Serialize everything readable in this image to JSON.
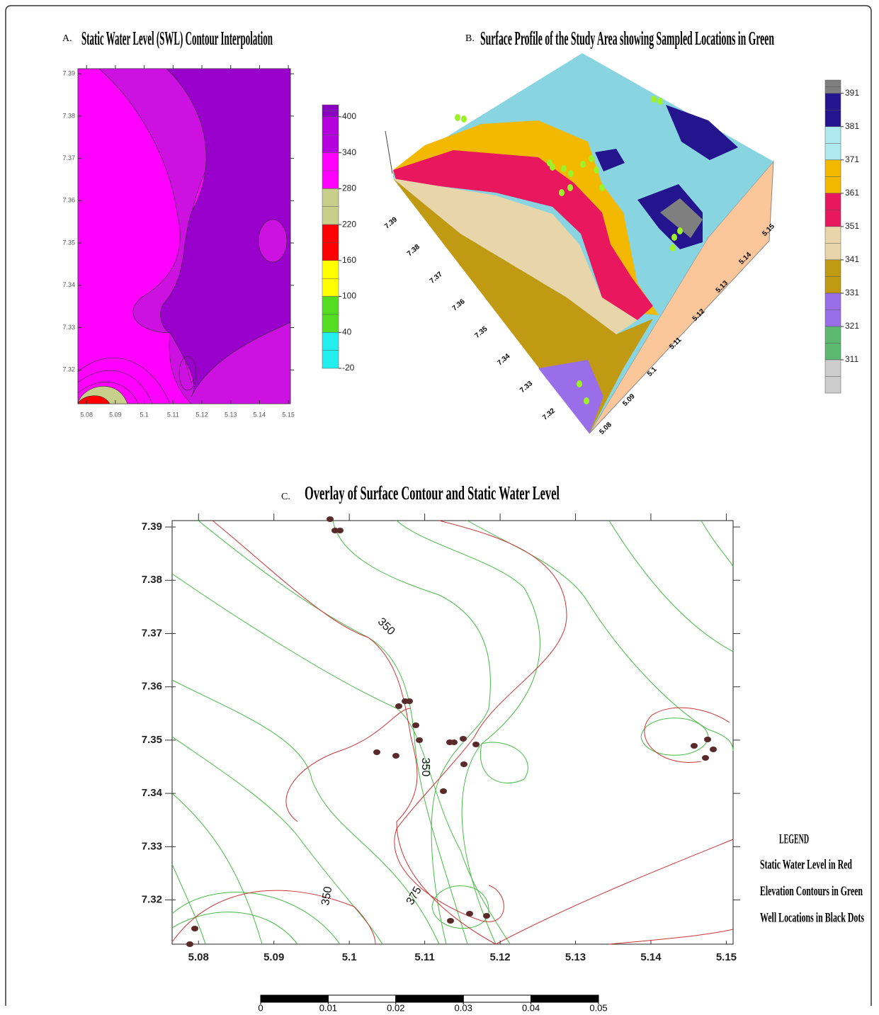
{
  "panel_a": {
    "letter": "A.",
    "title": "Static Water Level (SWL) Contour Interpolation",
    "xlim": [
      5.077,
      5.1507
    ],
    "xticks": [
      5.08,
      5.09,
      5.1,
      5.11,
      5.12,
      5.13,
      5.14,
      5.15
    ],
    "ylim": [
      7.312,
      7.3912
    ],
    "yticks": [
      7.32,
      7.33,
      7.34,
      7.35,
      7.36,
      7.37,
      7.38,
      7.39
    ],
    "colorbar": {
      "lim": [
        -20,
        420
      ],
      "ticks": [
        400,
        340,
        280,
        220,
        160,
        100,
        40,
        -20
      ]
    }
  },
  "panel_b": {
    "letter": "B.",
    "title": "Surface Profile of the Study Area showing Sampled Locations in Green",
    "y_axis_labels": [
      7.39,
      7.38,
      7.37,
      7.36,
      7.35,
      7.34,
      7.33,
      7.32
    ],
    "x_axis_labels": [
      5.08,
      5.09,
      5.1,
      5.11,
      5.12,
      5.13,
      5.14,
      5.15
    ],
    "colorbar": {
      "lim": [
        301,
        395
      ],
      "ticks": [
        391,
        381,
        371,
        361,
        351,
        341,
        331,
        321,
        311
      ]
    }
  },
  "panel_c": {
    "letter": "C.",
    "title": "Overlay of Surface Contour and Static Water Level",
    "xlim": [
      5.0765,
      5.1509
    ],
    "xticks": [
      5.08,
      5.09,
      5.1,
      5.11,
      5.12,
      5.13,
      5.14,
      5.15
    ],
    "ylim": [
      7.3117,
      7.3912
    ],
    "yticks": [
      7.32,
      7.33,
      7.34,
      7.35,
      7.36,
      7.37,
      7.38,
      7.39
    ],
    "contour_labels": [
      350,
      350,
      350,
      375
    ],
    "legend": {
      "title": "LEGEND",
      "items": [
        "Static Water Level in Red",
        "Elevation Contours in Green",
        "Well Locations in Black Dots"
      ]
    }
  },
  "scale_bar": {
    "lim": [
      0,
      0.05
    ],
    "ticks": [
      0,
      0.01,
      0.02,
      0.03,
      0.04,
      0.05
    ]
  }
}
